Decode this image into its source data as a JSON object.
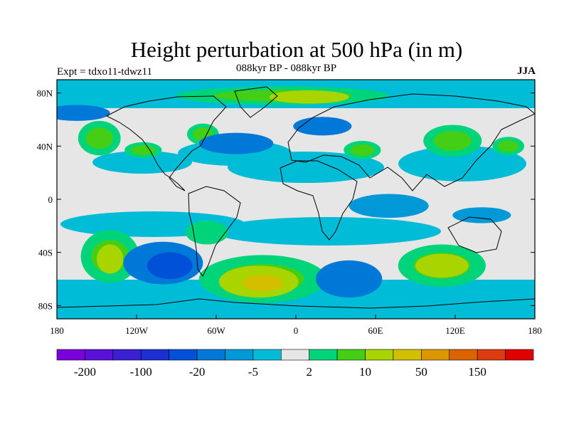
{
  "title": "Height perturbation at 500 hPa (in m)",
  "subtitle_left": "Expt = tdxo11-tdwz11",
  "subtitle_center": "088kyr BP - 088kyr BP",
  "subtitle_right": "JJA",
  "lat_ticks": [
    "80N",
    "40N",
    "0",
    "40S",
    "80S"
  ],
  "lon_ticks": [
    "180",
    "120W",
    "60W",
    "0",
    "60E",
    "120E",
    "180"
  ],
  "colorbar": {
    "colors": [
      "#7a00dc",
      "#5a10d8",
      "#3a20d2",
      "#1c2fd0",
      "#0050d8",
      "#0078d8",
      "#0098d6",
      "#00bcd6",
      "#e6e6e6",
      "#00d47a",
      "#44cf16",
      "#a8d400",
      "#d4be00",
      "#dc9600",
      "#dc6400",
      "#dc3c10",
      "#e00000"
    ],
    "labels": [
      "-200",
      "-100",
      "-20",
      "-5",
      "2",
      "10",
      "50",
      "150"
    ]
  },
  "chart_data": {
    "type": "heatmap",
    "xlim": [
      -180,
      180
    ],
    "ylim": [
      -90,
      90
    ],
    "x_ticks": [
      -180,
      -120,
      -60,
      0,
      60,
      120,
      180
    ],
    "y_ticks": [
      80,
      40,
      0,
      -40,
      -80
    ],
    "features": [
      {
        "lon": -148,
        "lat": 46,
        "rx": 16,
        "ry": 13,
        "level": 2
      },
      {
        "lon": -115,
        "lat": 37,
        "rx": 14,
        "ry": 6,
        "level": 2
      },
      {
        "lon": -70,
        "lat": 49,
        "rx": 12,
        "ry": 8,
        "level": 2
      },
      {
        "lon": -10,
        "lat": 78,
        "rx": 80,
        "ry": 7,
        "level": 2
      },
      {
        "lon": 10,
        "lat": 77,
        "rx": 30,
        "ry": 5,
        "level": 3
      },
      {
        "lon": 50,
        "lat": 37,
        "rx": 14,
        "ry": 7,
        "level": 2
      },
      {
        "lon": 118,
        "lat": 44,
        "rx": 22,
        "ry": 12,
        "level": 2
      },
      {
        "lon": 160,
        "lat": 40,
        "rx": 12,
        "ry": 7,
        "level": 2
      },
      {
        "lon": -140,
        "lat": -43,
        "rx": 22,
        "ry": 20,
        "level": 2
      },
      {
        "lon": -140,
        "lat": -45,
        "rx": 10,
        "ry": 11,
        "level": 3
      },
      {
        "lon": -67,
        "lat": -25,
        "rx": 16,
        "ry": 9,
        "level": 1
      },
      {
        "lon": -25,
        "lat": -60,
        "rx": 48,
        "ry": 18,
        "level": 2
      },
      {
        "lon": -28,
        "lat": -62,
        "rx": 30,
        "ry": 12,
        "level": 3
      },
      {
        "lon": -25,
        "lat": -63,
        "rx": 15,
        "ry": 6,
        "level": 4
      },
      {
        "lon": 110,
        "lat": -50,
        "rx": 33,
        "ry": 16,
        "level": 2
      },
      {
        "lon": 110,
        "lat": -50,
        "rx": 20,
        "ry": 9,
        "level": 3
      },
      {
        "lon": -100,
        "lat": -48,
        "rx": 30,
        "ry": 16,
        "level": -2
      },
      {
        "lon": -95,
        "lat": -50,
        "rx": 17,
        "ry": 10,
        "level": -3
      },
      {
        "lon": 40,
        "lat": -60,
        "rx": 25,
        "ry": 14,
        "level": -2
      },
      {
        "lon": -45,
        "lat": 42,
        "rx": 28,
        "ry": 8,
        "level": -2
      },
      {
        "lon": 20,
        "lat": 55,
        "rx": 22,
        "ry": 7,
        "level": -2
      },
      {
        "lon": -165,
        "lat": 65,
        "rx": 25,
        "ry": 6,
        "level": -2
      },
      {
        "lon": 140,
        "lat": -12,
        "rx": 22,
        "ry": 6,
        "level": -1
      },
      {
        "lon": 70,
        "lat": -5,
        "rx": 30,
        "ry": 9,
        "level": -1
      }
    ]
  }
}
